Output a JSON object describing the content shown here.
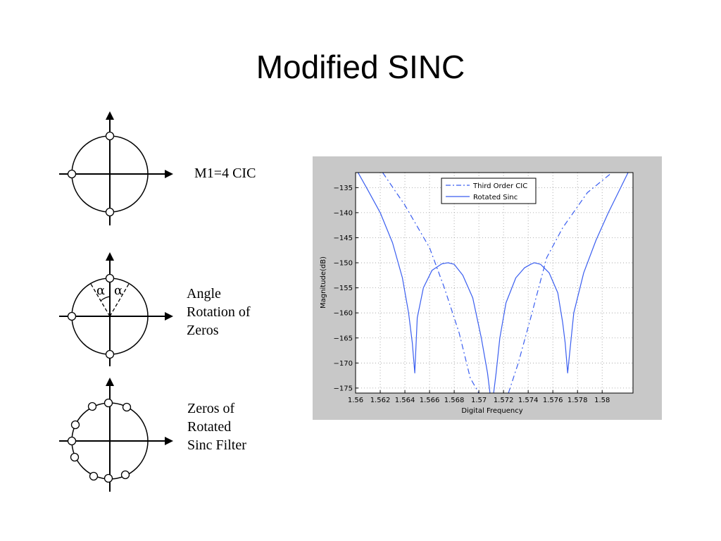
{
  "slide": {
    "title": "Modified SINC",
    "diagram1_label": "M1=4 CIC",
    "diagram2_label": [
      "Angle",
      "Rotation of",
      "Zeros"
    ],
    "diagram2_angle_symbol": "α",
    "diagram3_label": [
      "Zeros of",
      "Rotated",
      "Sinc Filter"
    ]
  },
  "chart_data": {
    "type": "line",
    "xlabel": "Digital Frequency",
    "ylabel": "Magnitude(dB)",
    "xlim": [
      1.56,
      1.5825
    ],
    "ylim": [
      -176,
      -132
    ],
    "xticks": [
      1.56,
      1.562,
      1.564,
      1.566,
      1.568,
      1.57,
      1.572,
      1.574,
      1.576,
      1.578,
      1.58
    ],
    "xtick_labels": [
      "1.56",
      "1.562",
      "1.564",
      "1.566",
      "1.568",
      "1.57",
      "1.572",
      "1.574",
      "1.576",
      "1.578",
      "1.58"
    ],
    "yticks": [
      -175,
      -170,
      -165,
      -160,
      -155,
      -150,
      -145,
      -140,
      -135
    ],
    "ytick_labels": [
      "−175",
      "−170",
      "−165",
      "−160",
      "−155",
      "−150",
      "−145",
      "−140",
      "−135"
    ],
    "grid": true,
    "legend_position": "top-right",
    "colors": {
      "series": "#3a5ef0",
      "frame": "#c8c8c8"
    },
    "series": [
      {
        "name": "Third Order CIC",
        "style": "dash-dot",
        "x": [
          1.5622,
          1.564,
          1.566,
          1.5672,
          1.5684,
          1.5693,
          1.57
        ],
        "y": [
          -132,
          -138.5,
          -147,
          -155,
          -164,
          -173,
          -176
        ]
      },
      {
        "name": "Third Order CIC",
        "style": "dash-dot",
        "x": [
          1.5724,
          1.5732,
          1.5742,
          1.5755,
          1.5768,
          1.5788,
          1.5808
        ],
        "y": [
          -176,
          -170,
          -161,
          -149,
          -143,
          -136,
          -132
        ]
      },
      {
        "name": "Rotated Sinc",
        "style": "solid",
        "x": [
          1.5602,
          1.561,
          1.562,
          1.563,
          1.5638,
          1.5643,
          1.5646,
          1.5648,
          1.565,
          1.5655,
          1.5662,
          1.567,
          1.5675,
          1.568,
          1.5687,
          1.5695,
          1.5702,
          1.5707,
          1.5709
        ],
        "y": [
          -132,
          -135.5,
          -140,
          -146,
          -153,
          -160,
          -166,
          -172,
          -161,
          -155,
          -151.5,
          -150.2,
          -150,
          -150.3,
          -152.5,
          -157,
          -165,
          -172,
          -176
        ]
      },
      {
        "name": "Rotated Sinc",
        "style": "solid",
        "x": [
          1.5712,
          1.5714,
          1.5717,
          1.5722,
          1.573,
          1.5737,
          1.5742,
          1.5745,
          1.575,
          1.5757,
          1.5764,
          1.5768,
          1.577,
          1.5772,
          1.5777,
          1.5785,
          1.5795,
          1.5805,
          1.5813,
          1.5821
        ],
        "y": [
          -176,
          -172,
          -165,
          -158,
          -153,
          -151,
          -150.3,
          -150,
          -150.3,
          -152,
          -156,
          -162,
          -166,
          -172,
          -160,
          -152,
          -145.5,
          -140,
          -136,
          -132
        ]
      }
    ]
  }
}
